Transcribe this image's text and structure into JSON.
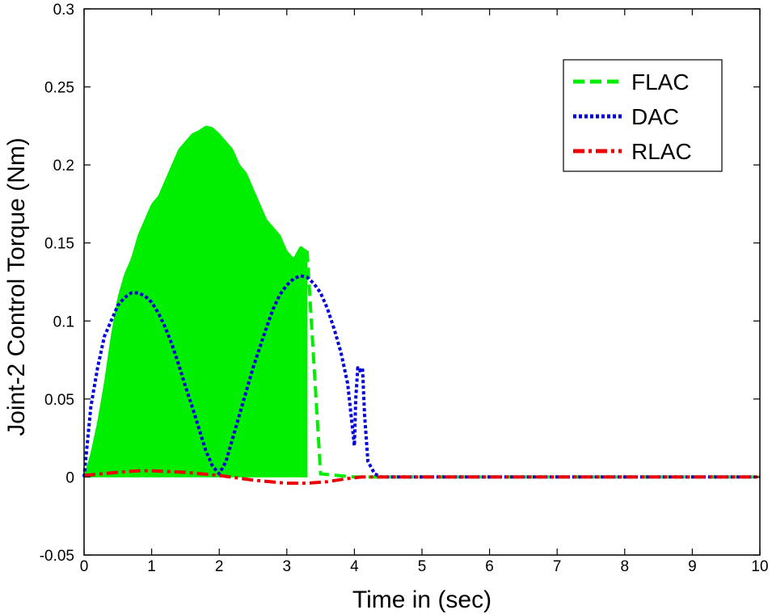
{
  "chart_data": {
    "type": "line",
    "title": "",
    "xlabel": "Time in (sec)",
    "ylabel": "Joint-2 Control Torque (Nm)",
    "xlim": [
      0,
      10
    ],
    "ylim": [
      -0.05,
      0.3
    ],
    "xticks": [
      "0",
      "1",
      "2",
      "3",
      "4",
      "5",
      "6",
      "7",
      "8",
      "9",
      "10"
    ],
    "yticks": [
      "-0.05",
      "0",
      "0.05",
      "0.1",
      "0.15",
      "0.2",
      "0.25",
      "0.3"
    ],
    "grid": false,
    "legend_position": "top-right",
    "series": [
      {
        "name": "FLAC",
        "color": "#00ee00",
        "style": "dashed",
        "rendering": "high-frequency oscillation filled between lower and upper envelope until about 3.3 s",
        "x": [
          0,
          0.1,
          0.2,
          0.3,
          0.4,
          0.5,
          0.6,
          0.7,
          0.8,
          0.9,
          1.0,
          1.1,
          1.2,
          1.3,
          1.4,
          1.5,
          1.6,
          1.7,
          1.8,
          1.9,
          2.0,
          2.1,
          2.2,
          2.3,
          2.4,
          2.5,
          2.6,
          2.7,
          2.8,
          2.9,
          3.0,
          3.1,
          3.2,
          3.3,
          3.5,
          4.0,
          5.0,
          6.0,
          7.0,
          8.0,
          9.0,
          10.0
        ],
        "upper": [
          0.0,
          0.015,
          0.035,
          0.06,
          0.09,
          0.115,
          0.13,
          0.14,
          0.155,
          0.165,
          0.175,
          0.18,
          0.19,
          0.2,
          0.21,
          0.215,
          0.22,
          0.222,
          0.225,
          0.224,
          0.22,
          0.215,
          0.21,
          0.2,
          0.195,
          0.185,
          0.175,
          0.165,
          0.16,
          0.155,
          0.145,
          0.14,
          0.148,
          0.145,
          0.002,
          0.0,
          0.0,
          0.0,
          0.0,
          0.0,
          0.0,
          0.0
        ],
        "lower": [
          0.0,
          0.0,
          0.0,
          0.0,
          0.0,
          0.0,
          0.0,
          0.0,
          0.0,
          0.0,
          0.0,
          0.0,
          0.0,
          0.0,
          0.0,
          0.0,
          0.0,
          0.0,
          0.0,
          0.0,
          0.0,
          0.0,
          0.0,
          0.0,
          0.0,
          0.0,
          0.0,
          0.0,
          0.0,
          0.0,
          0.0,
          0.0,
          0.0,
          0.0,
          0.0,
          0.0,
          0.0,
          0.0,
          0.0,
          0.0,
          0.0,
          0.0
        ]
      },
      {
        "name": "DAC",
        "color": "#0000dd",
        "style": "dotted",
        "x": [
          0,
          0.1,
          0.2,
          0.3,
          0.4,
          0.5,
          0.6,
          0.7,
          0.8,
          0.9,
          1.0,
          1.1,
          1.2,
          1.3,
          1.4,
          1.5,
          1.6,
          1.7,
          1.8,
          1.9,
          2.0,
          2.1,
          2.2,
          2.3,
          2.4,
          2.5,
          2.6,
          2.7,
          2.8,
          2.9,
          3.0,
          3.1,
          3.2,
          3.3,
          3.4,
          3.5,
          3.6,
          3.7,
          3.8,
          3.9,
          4.0,
          4.02,
          4.05,
          4.08,
          4.12,
          4.15,
          4.2,
          4.3,
          4.4,
          4.5,
          5.0,
          6.0,
          7.0,
          8.0,
          9.0,
          10.0
        ],
        "values": [
          0.0,
          0.045,
          0.07,
          0.09,
          0.1,
          0.11,
          0.115,
          0.118,
          0.118,
          0.116,
          0.112,
          0.105,
          0.096,
          0.085,
          0.072,
          0.058,
          0.045,
          0.031,
          0.017,
          0.007,
          0.002,
          0.01,
          0.025,
          0.04,
          0.055,
          0.07,
          0.083,
          0.096,
          0.108,
          0.117,
          0.123,
          0.127,
          0.129,
          0.128,
          0.124,
          0.118,
          0.108,
          0.095,
          0.08,
          0.06,
          0.02,
          0.05,
          0.07,
          0.068,
          0.07,
          0.04,
          0.01,
          0.002,
          0.0,
          0.0,
          0.0,
          0.0,
          0.0,
          0.0,
          0.0,
          0.0
        ]
      },
      {
        "name": "RLAC",
        "color": "#ee0000",
        "style": "dash-dot",
        "x": [
          0,
          0.5,
          0.8,
          1.0,
          1.5,
          2.0,
          2.5,
          3.0,
          3.3,
          3.6,
          3.9,
          4.1,
          4.5,
          5.0,
          6.0,
          7.0,
          8.0,
          9.0,
          10.0
        ],
        "values": [
          0.001,
          0.003,
          0.004,
          0.004,
          0.003,
          0.001,
          -0.002,
          -0.004,
          -0.004,
          -0.003,
          -0.001,
          0.0,
          0.0,
          0.0,
          0.0,
          0.0,
          0.0,
          0.0,
          0.0
        ]
      }
    ]
  }
}
